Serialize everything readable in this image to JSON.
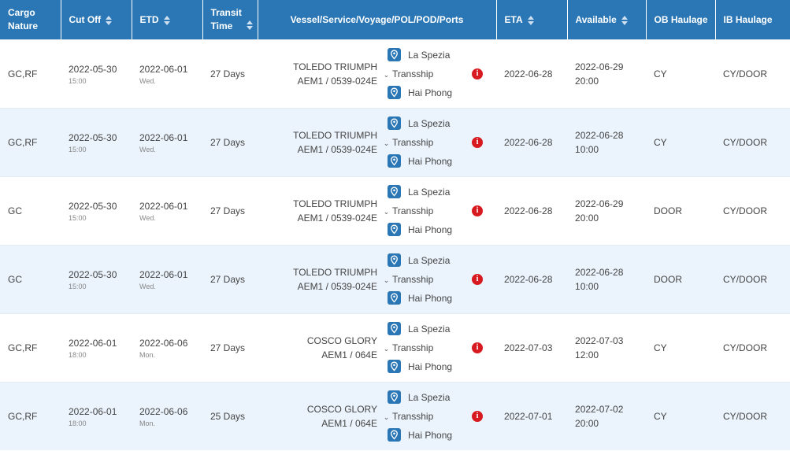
{
  "headers": {
    "cargo_nature": [
      "Cargo",
      "Nature"
    ],
    "cut_off": "Cut Off",
    "etd": "ETD",
    "transit_time": [
      "Transit",
      "Time"
    ],
    "vessel": "Vessel/Service/Voyage/POL/POD/Ports",
    "eta": "ETA",
    "available": "Available",
    "ob_haulage": "OB Haulage",
    "ib_haulage": "IB Haulage"
  },
  "rows": [
    {
      "cargo": "GC,RF",
      "cutoff_date": "2022-05-30",
      "cutoff_time": "15:00",
      "etd_date": "2022-06-01",
      "etd_day": "Wed.",
      "transit": "27 Days",
      "vessel": "TOLEDO TRIUMPH",
      "service": "AEM1 / 0539-024E",
      "pol": "La Spezia",
      "tranship": "Transship",
      "pod": "Hai Phong",
      "info": "i",
      "eta": "2022-06-28",
      "avail_date": "2022-06-29",
      "avail_time": "20:00",
      "ob": "CY",
      "ib": "CY/DOOR"
    },
    {
      "cargo": "GC,RF",
      "cutoff_date": "2022-05-30",
      "cutoff_time": "15:00",
      "etd_date": "2022-06-01",
      "etd_day": "Wed.",
      "transit": "27 Days",
      "vessel": "TOLEDO TRIUMPH",
      "service": "AEM1 / 0539-024E",
      "pol": "La Spezia",
      "tranship": "Transship",
      "pod": "Hai Phong",
      "info": "i",
      "eta": "2022-06-28",
      "avail_date": "2022-06-28",
      "avail_time": "10:00",
      "ob": "CY",
      "ib": "CY/DOOR"
    },
    {
      "cargo": "GC",
      "cutoff_date": "2022-05-30",
      "cutoff_time": "15:00",
      "etd_date": "2022-06-01",
      "etd_day": "Wed.",
      "transit": "27 Days",
      "vessel": "TOLEDO TRIUMPH",
      "service": "AEM1 / 0539-024E",
      "pol": "La Spezia",
      "tranship": "Transship",
      "pod": "Hai Phong",
      "info": "i",
      "eta": "2022-06-28",
      "avail_date": "2022-06-29",
      "avail_time": "20:00",
      "ob": "DOOR",
      "ib": "CY/DOOR"
    },
    {
      "cargo": "GC",
      "cutoff_date": "2022-05-30",
      "cutoff_time": "15:00",
      "etd_date": "2022-06-01",
      "etd_day": "Wed.",
      "transit": "27 Days",
      "vessel": "TOLEDO TRIUMPH",
      "service": "AEM1 / 0539-024E",
      "pol": "La Spezia",
      "tranship": "Transship",
      "pod": "Hai Phong",
      "info": "i",
      "eta": "2022-06-28",
      "avail_date": "2022-06-28",
      "avail_time": "10:00",
      "ob": "DOOR",
      "ib": "CY/DOOR"
    },
    {
      "cargo": "GC,RF",
      "cutoff_date": "2022-06-01",
      "cutoff_time": "18:00",
      "etd_date": "2022-06-06",
      "etd_day": "Mon.",
      "transit": "27 Days",
      "vessel": "COSCO GLORY",
      "service": "AEM1 / 064E",
      "pol": "La Spezia",
      "tranship": "Transship",
      "pod": "Hai Phong",
      "info": "i",
      "eta": "2022-07-03",
      "avail_date": "2022-07-03",
      "avail_time": "12:00",
      "ob": "CY",
      "ib": "CY/DOOR"
    },
    {
      "cargo": "GC,RF",
      "cutoff_date": "2022-06-01",
      "cutoff_time": "18:00",
      "etd_date": "2022-06-06",
      "etd_day": "Mon.",
      "transit": "25 Days",
      "vessel": "COSCO GLORY",
      "service": "AEM1 / 064E",
      "pol": "La Spezia",
      "tranship": "Transship",
      "pod": "Hai Phong",
      "info": "i",
      "eta": "2022-07-01",
      "avail_date": "2022-07-02",
      "avail_time": "20:00",
      "ob": "CY",
      "ib": "CY/DOOR"
    }
  ],
  "icons": {
    "sort": "sort-icon",
    "port": "map-pin-icon",
    "expand": "chevron-down-icon",
    "info": "info-icon"
  },
  "colors": {
    "header_bg": "#2b77b6",
    "alt_row_bg": "#ebf3fc",
    "info_red": "#d71920"
  }
}
